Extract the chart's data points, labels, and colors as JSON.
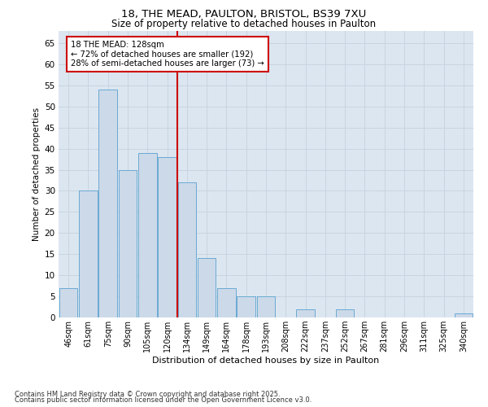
{
  "title_line1": "18, THE MEAD, PAULTON, BRISTOL, BS39 7XU",
  "title_line2": "Size of property relative to detached houses in Paulton",
  "xlabel": "Distribution of detached houses by size in Paulton",
  "ylabel": "Number of detached properties",
  "bar_labels": [
    "46sqm",
    "61sqm",
    "75sqm",
    "90sqm",
    "105sqm",
    "120sqm",
    "134sqm",
    "149sqm",
    "164sqm",
    "178sqm",
    "193sqm",
    "208sqm",
    "222sqm",
    "237sqm",
    "252sqm",
    "267sqm",
    "281sqm",
    "296sqm",
    "311sqm",
    "325sqm",
    "340sqm"
  ],
  "bar_values": [
    7,
    30,
    54,
    35,
    39,
    38,
    32,
    14,
    7,
    5,
    5,
    0,
    2,
    0,
    2,
    0,
    0,
    0,
    0,
    0,
    1
  ],
  "bar_color": "#ccd9e8",
  "bar_edge_color": "#6aaad4",
  "subject_label": "18 THE MEAD: 128sqm",
  "annotation_line1": "← 72% of detached houses are smaller (192)",
  "annotation_line2": "28% of semi-detached houses are larger (73) →",
  "red_line_color": "#cc0000",
  "annotation_box_color": "#ffffff",
  "annotation_box_edge": "#cc0000",
  "ylim": [
    0,
    68
  ],
  "yticks": [
    0,
    5,
    10,
    15,
    20,
    25,
    30,
    35,
    40,
    45,
    50,
    55,
    60,
    65
  ],
  "grid_color": "#c8d4e0",
  "bg_color": "#dce6f0",
  "footer_line1": "Contains HM Land Registry data © Crown copyright and database right 2025.",
  "footer_line2": "Contains public sector information licensed under the Open Government Licence v3.0."
}
